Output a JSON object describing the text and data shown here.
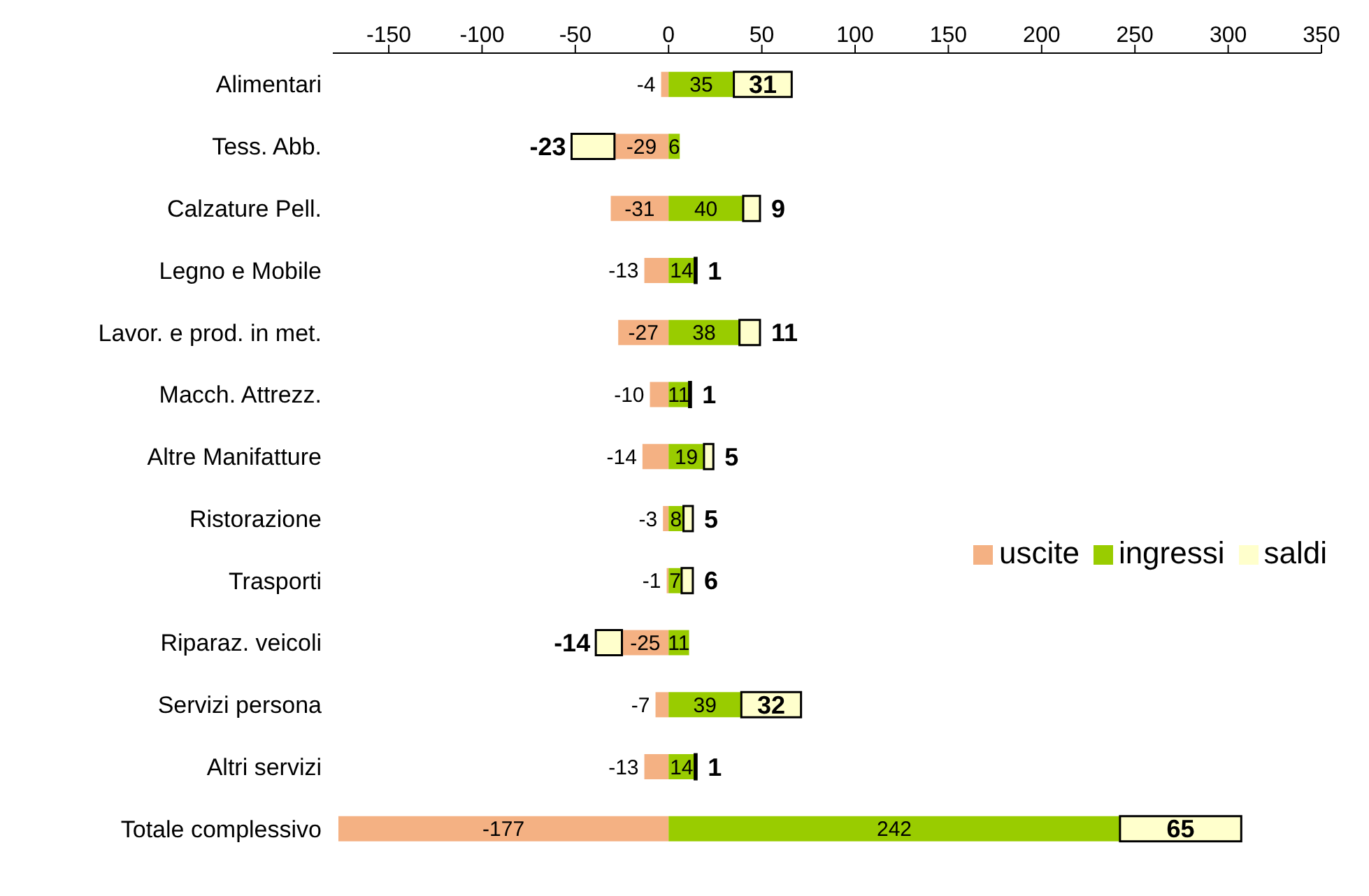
{
  "chart_data": {
    "type": "bar",
    "orientation": "horizontal",
    "stacked": true,
    "categories": [
      "Alimentari",
      "Tess. Abb.",
      "Calzature Pell.",
      "Legno e Mobile",
      "Lavor. e prod. in met.",
      "Macch. Attrezz.",
      "Altre Manifatture",
      "Ristorazione",
      "Trasporti",
      "Riparaz. veicoli",
      "Servizi persona",
      "Altri servizi",
      "Totale complessivo"
    ],
    "series": [
      {
        "name": "uscite",
        "color": "#f4b183",
        "values": [
          -4,
          -29,
          -31,
          -13,
          -27,
          -10,
          -14,
          -3,
          -1,
          -25,
          -7,
          -13,
          -177
        ]
      },
      {
        "name": "ingressi",
        "color": "#99cc00",
        "values": [
          35,
          6,
          40,
          14,
          38,
          11,
          19,
          8,
          7,
          11,
          39,
          14,
          242
        ]
      },
      {
        "name": "saldi",
        "color": "#ffffcc",
        "values": [
          31,
          -23,
          9,
          1,
          11,
          1,
          5,
          5,
          6,
          -14,
          32,
          1,
          65
        ]
      }
    ],
    "xlim": [
      -180,
      350
    ],
    "xticks": [
      -150,
      -100,
      -50,
      0,
      50,
      100,
      150,
      200,
      250,
      300,
      350
    ],
    "data_labels": true,
    "legend": "right",
    "grid": false
  }
}
